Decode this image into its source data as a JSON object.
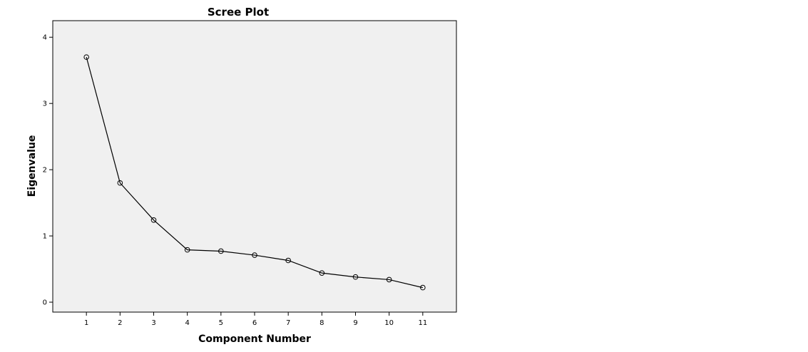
{
  "chart_data": {
    "type": "line",
    "title": "Scree Plot",
    "xlabel": "Component Number",
    "ylabel": "Eigenvalue",
    "x": [
      1,
      2,
      3,
      4,
      5,
      6,
      7,
      8,
      9,
      10,
      11
    ],
    "series": [
      {
        "values": [
          3.7,
          1.8,
          1.24,
          0.79,
          0.77,
          0.71,
          0.63,
          0.44,
          0.38,
          0.34,
          0.22
        ]
      }
    ],
    "y_ticks": [
      0,
      1,
      2,
      3,
      4
    ],
    "x_ticks": [
      1,
      2,
      3,
      4,
      5,
      6,
      7,
      8,
      9,
      10,
      11
    ],
    "ylim": [
      -0.15,
      4.25
    ],
    "xlim": [
      0,
      12
    ],
    "grid": false,
    "marker": "open-circle",
    "colors": {
      "plot_background": "#f0f0f0",
      "line": "#000000",
      "marker_stroke": "#000000",
      "axis": "#000000"
    }
  }
}
